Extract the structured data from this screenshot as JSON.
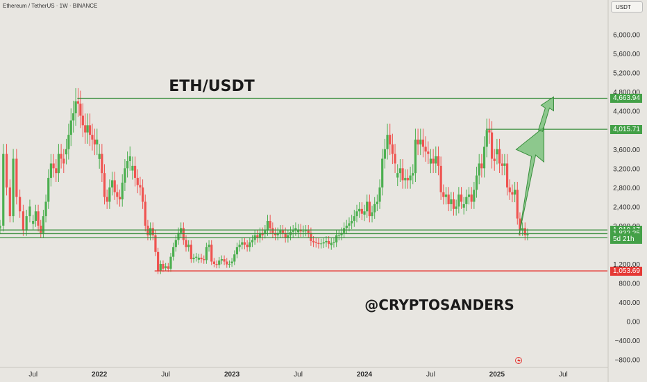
{
  "header": {
    "symbol_line": "Ethereum / TetherUS · 1W · BINANCE",
    "currency": "USDT"
  },
  "colors": {
    "background": "#e8e6e1",
    "bull": "#4caf50",
    "bear": "#ef5350",
    "level_green": "#388e3c",
    "level_red": "#e53935",
    "arrow_fill": "#66bb6a"
  },
  "chart_data": {
    "type": "candlestick",
    "title": "ETH/USDT",
    "annotations": [
      "ETH/USDT",
      "@CRYPTOSANDERS"
    ],
    "y_ticks": [
      6000,
      5600,
      5200,
      4800,
      4400,
      4000,
      3600,
      3200,
      2800,
      2400,
      2000,
      1200,
      800,
      400,
      0,
      -400,
      -800
    ],
    "y_tick_labels": [
      "6,000.00",
      "5,600.00",
      "5,200.00",
      "4,800.00",
      "4,400.00",
      "4,000.00",
      "3,600.00",
      "3,200.00",
      "2,800.00",
      "2,400.00",
      "2,000.00",
      "1,200.00",
      "800.00",
      "400.00",
      "0.00",
      "−400.00",
      "−800.00"
    ],
    "ylim": [
      -950,
      6400
    ],
    "x_labels": [
      {
        "text": "Jul",
        "date": "2021-07"
      },
      {
        "text": "2022",
        "date": "2022-01",
        "year": true
      },
      {
        "text": "Jul",
        "date": "2022-07"
      },
      {
        "text": "2023",
        "date": "2023-01",
        "year": true
      },
      {
        "text": "Jul",
        "date": "2023-07"
      },
      {
        "text": "2024",
        "date": "2024-01",
        "year": true
      },
      {
        "text": "Jul",
        "date": "2024-07"
      },
      {
        "text": "2025",
        "date": "2025-01",
        "year": true
      },
      {
        "text": "Jul",
        "date": "2025-07"
      }
    ],
    "xlim": [
      "2021-04",
      "2025-11"
    ],
    "levels": [
      {
        "value": 4663.94,
        "label": "4,663.94",
        "color": "green",
        "from_date": "2021-11"
      },
      {
        "value": 4015.71,
        "label": "4,015.71",
        "color": "green",
        "from_date": "2024-12"
      },
      {
        "value": 1910.17,
        "label": "1,910.17",
        "color": "green",
        "from_date": "2021-04"
      },
      {
        "value": 1832.25,
        "label": "1,832.25",
        "color": "green",
        "from_date": "2021-04"
      },
      {
        "value": 1747.87,
        "label": "1,747.87",
        "color": "green",
        "from_date": "2021-04"
      },
      {
        "value": 1053.69,
        "label": "1,053.69",
        "color": "red",
        "from_date": "2022-06"
      }
    ],
    "countdown": "5d 21h",
    "projection": [
      {
        "date": "2025-03",
        "value": 1800
      },
      {
        "date": "2025-05",
        "value": 4000
      },
      {
        "date": "2025-06",
        "value": 4663.94
      }
    ],
    "series": [
      {
        "date": "2021-04",
        "values": [
          2000,
          3500,
          2800,
          2200,
          3400,
          2600,
          2300,
          1900,
          2200,
          2400
        ]
      },
      {
        "date": "2021-07",
        "values": [
          2100,
          2300,
          2000,
          1850,
          2200,
          2500,
          3000,
          3300,
          3200,
          3100,
          3500,
          3400,
          3300
        ]
      },
      {
        "date": "2021-10",
        "values": [
          3600,
          3900,
          4200,
          4350,
          4600,
          4550,
          4300,
          4100,
          3950,
          4100,
          3900,
          3800,
          3700,
          3800
        ]
      },
      {
        "date": "2022-01",
        "values": [
          3500,
          3100,
          2600,
          2500,
          2800,
          2950,
          2700,
          2600,
          2550,
          2900,
          3200,
          3350,
          3450
        ]
      },
      {
        "date": "2022-04",
        "values": [
          3250,
          3000,
          2850,
          2800,
          2500,
          2000,
          1800,
          1950,
          1800,
          1450,
          1050,
          1200,
          1100
        ]
      },
      {
        "date": "2022-07",
        "values": [
          1150,
          1100,
          1350,
          1550,
          1700,
          1850,
          1950,
          1700,
          1550,
          1600,
          1300,
          1330,
          1350
        ]
      },
      {
        "date": "2022-10",
        "values": [
          1330,
          1300,
          1280,
          1550,
          1600,
          1250,
          1200,
          1180,
          1270,
          1300,
          1250,
          1190,
          1200
        ]
      },
      {
        "date": "2023-01",
        "values": [
          1250,
          1400,
          1550,
          1600,
          1650,
          1600,
          1550,
          1650,
          1700,
          1800,
          1750,
          1850,
          1800
        ]
      },
      {
        "date": "2023-04",
        "values": [
          1900,
          2100,
          1950,
          1850,
          1800,
          1850,
          1900,
          1850,
          1750,
          1800,
          1870,
          1900,
          1950
        ]
      },
      {
        "date": "2023-07",
        "values": [
          1920,
          1880,
          1890,
          1900,
          1850,
          1680,
          1650,
          1640,
          1620,
          1630,
          1650,
          1680,
          1620
        ]
      },
      {
        "date": "2023-10",
        "values": [
          1640,
          1650,
          1800,
          1800,
          1850,
          1950,
          2000,
          2050,
          2100,
          2200,
          2300,
          2350,
          2250
        ]
      },
      {
        "date": "2024-01",
        "values": [
          2300,
          2500,
          2200,
          2280,
          2450,
          2500,
          2800,
          3400,
          3600,
          3900,
          3700,
          3500,
          3300
        ]
      },
      {
        "date": "2024-04",
        "values": [
          3100,
          3200,
          2950,
          3000,
          2950,
          3050,
          3100,
          3800,
          3700,
          3800,
          3650,
          3550,
          3500
        ]
      },
      {
        "date": "2024-07",
        "values": [
          3400,
          3300,
          3450,
          3250,
          2700,
          2600,
          2650,
          2450,
          2550,
          2350,
          2400,
          2650,
          2500
        ]
      },
      {
        "date": "2024-10",
        "values": [
          2450,
          2600,
          2650,
          2500,
          2750,
          3050,
          3300,
          3200,
          3650,
          4000,
          3950,
          3400,
          3350
        ]
      },
      {
        "date": "2025-01",
        "values": [
          3600,
          3300,
          3250,
          3300,
          2800,
          2700,
          2650,
          2750,
          2150,
          1900,
          1950,
          1800,
          1830
        ]
      }
    ]
  }
}
